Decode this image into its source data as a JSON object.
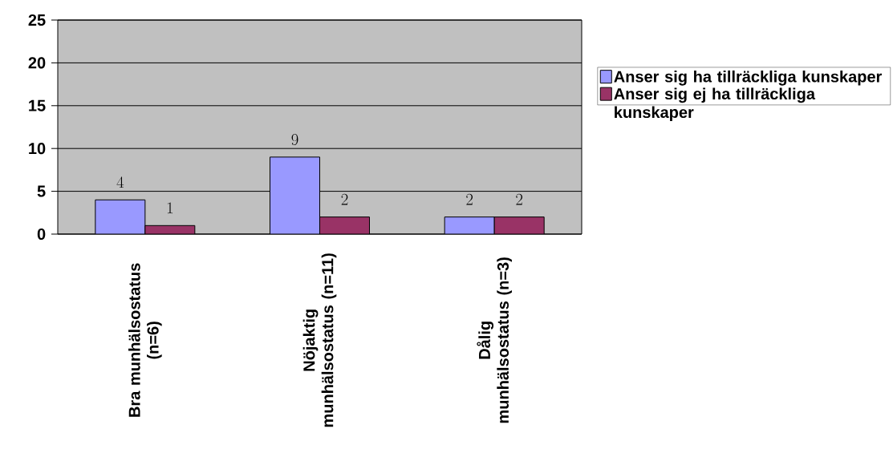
{
  "chart_data": {
    "type": "bar",
    "categories": [
      "Bra munhälsostatus (n=6)",
      "Nöjaktig munhälsostatus (n=11)",
      "Dålig munhälsostatus (n=3)"
    ],
    "series": [
      {
        "name": "Anser sig ha tillräckliga kunskaper",
        "color": "#9999ff",
        "values": [
          4,
          9,
          2
        ]
      },
      {
        "name": "Anser sig ej ha tillräckliga kunskaper",
        "color": "#993366",
        "values": [
          1,
          2,
          2
        ]
      }
    ],
    "ylim": [
      0,
      25
    ],
    "yticks": [
      0,
      5,
      10,
      15,
      20,
      25
    ],
    "grid": "y",
    "legend": "right",
    "data_labels": true
  }
}
